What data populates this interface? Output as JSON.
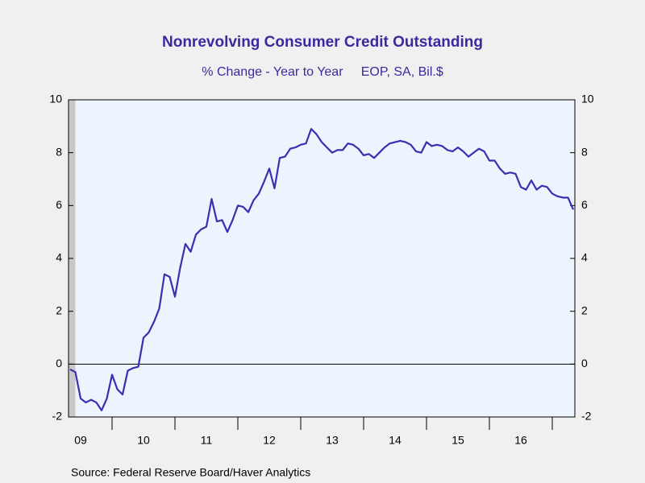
{
  "chart_data": {
    "type": "line",
    "title": "Nonrevolving Consumer Credit Outstanding",
    "subtitle": "% Change - Year to Year     EOP, SA, Bil.$",
    "source": "Source:  Federal Reserve Board/Haver Analytics",
    "categories": [
      null,
      null,
      "09",
      null,
      null,
      null,
      null,
      null,
      null,
      null,
      null,
      null,
      null,
      null,
      "10",
      null,
      null,
      null,
      null,
      null,
      null,
      null,
      null,
      null,
      null,
      null,
      "11",
      null,
      null,
      null,
      null,
      null,
      null,
      null,
      null,
      null,
      null,
      null,
      "12",
      null,
      null,
      null,
      null,
      null,
      null,
      null,
      null,
      null,
      null,
      null,
      "13",
      null,
      null,
      null,
      null,
      null,
      null,
      null,
      null,
      null,
      null,
      null,
      "14",
      null,
      null,
      null,
      null,
      null,
      null,
      null,
      null,
      null,
      null,
      null,
      "15",
      null,
      null,
      null,
      null,
      null,
      null,
      null,
      null,
      null,
      null,
      null,
      "16",
      null,
      null,
      null,
      null,
      null,
      null,
      null,
      null,
      null,
      null
    ],
    "series": [
      {
        "name": "Nonrevolving Consumer Credit Outstanding",
        "color": "#3d2db0",
        "values": [
          -0.2,
          -0.3,
          -1.3,
          -1.45,
          -1.35,
          -1.45,
          -1.75,
          -1.3,
          -0.4,
          -0.95,
          -1.15,
          -0.25,
          -0.15,
          -0.1,
          1.0,
          1.2,
          1.6,
          2.1,
          3.4,
          3.3,
          2.55,
          3.65,
          4.55,
          4.25,
          4.9,
          5.1,
          5.2,
          6.25,
          5.4,
          5.45,
          5.0,
          5.45,
          6.0,
          5.95,
          5.75,
          6.2,
          6.45,
          6.9,
          7.4,
          6.65,
          7.8,
          7.85,
          8.15,
          8.2,
          8.3,
          8.35,
          8.9,
          8.7,
          8.4,
          8.2,
          8.0,
          8.1,
          8.1,
          8.35,
          8.3,
          8.15,
          7.9,
          7.95,
          7.8,
          8.0,
          8.2,
          8.35,
          8.4,
          8.45,
          8.4,
          8.3,
          8.05,
          8.0,
          8.4,
          8.25,
          8.3,
          8.25,
          8.1,
          8.05,
          8.2,
          8.05,
          7.85,
          8.0,
          8.15,
          8.05,
          7.7,
          7.7,
          7.4,
          7.2,
          7.25,
          7.2,
          6.7,
          6.6,
          6.95,
          6.6,
          6.75,
          6.7,
          6.45,
          6.35,
          6.3,
          6.3,
          5.85
        ]
      }
    ],
    "ylim": [
      -2,
      10
    ],
    "yticks": [
      -2,
      0,
      2,
      4,
      6,
      8,
      10
    ],
    "zero_line": true
  }
}
